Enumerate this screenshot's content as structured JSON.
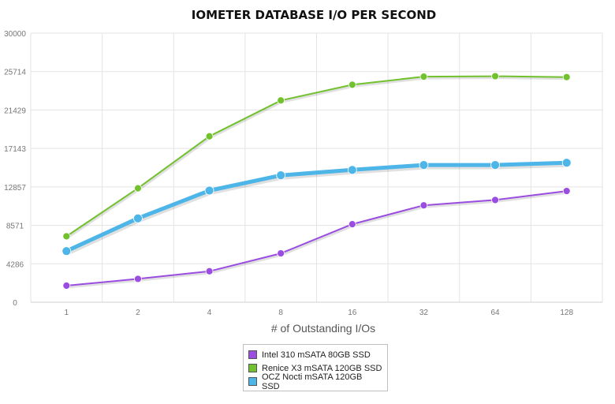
{
  "chart_data": {
    "type": "line",
    "title": "IOMETER DATABASE I/O PER SECOND",
    "xlabel": "# of Outstanding I/Os",
    "ylabel": "",
    "categories": [
      "1",
      "2",
      "4",
      "8",
      "16",
      "32",
      "64",
      "128"
    ],
    "y_ticks": [
      "0",
      "4286",
      "8571",
      "12857",
      "17143",
      "21429",
      "25714",
      "30000"
    ],
    "ylim": [
      0,
      30000
    ],
    "grid": true,
    "legend": "bottom-center",
    "series": [
      {
        "name": "Intel 310 mSATA 80GB SSD",
        "color": "#9a4de0",
        "values": [
          1850,
          2600,
          3450,
          5450,
          8700,
          10800,
          11400,
          12400
        ]
      },
      {
        "name": "Renice X3 mSATA 120GB SSD",
        "color": "#72c12f",
        "values": [
          7350,
          12700,
          18500,
          22500,
          24250,
          25150,
          25200,
          25100
        ]
      },
      {
        "name": "OCZ Nocti mSATA 120GB SSD",
        "color": "#4db5e8",
        "values": [
          5700,
          9350,
          12450,
          14150,
          14750,
          15300,
          15300,
          15550
        ]
      }
    ]
  }
}
